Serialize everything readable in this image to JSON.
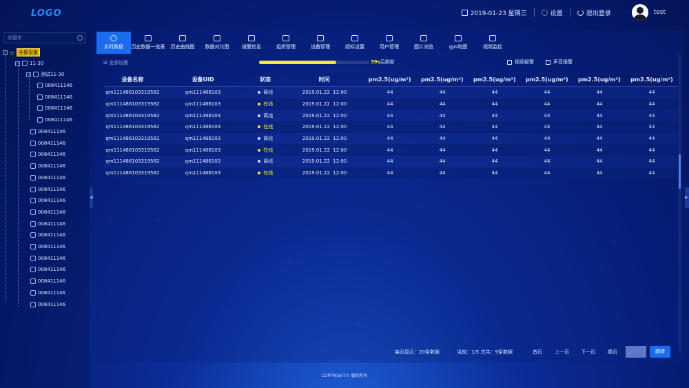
{
  "header": {
    "logo": "LOGO",
    "date": "2019-01-23 星期三",
    "settings": "设置",
    "logout": "退出登录",
    "username": "test"
  },
  "sidebar": {
    "search_placeholder": "关键字",
    "root": "全部设备",
    "group1": "11-30",
    "subgroup": "测试11-30",
    "sub_devices": [
      "008411146",
      "008411146",
      "008411146",
      "008411146"
    ],
    "devices": [
      "008411146",
      "008411146",
      "008411146",
      "008411146",
      "008411146",
      "008411146",
      "008411146",
      "008411146",
      "008411146",
      "008411146",
      "008411146",
      "008411146",
      "008411146",
      "008411146",
      "008411146",
      "008411146"
    ]
  },
  "nav": {
    "tabs": [
      "实时数据",
      "历史数据一览表",
      "历史曲线图",
      "数据对比图",
      "报警信息",
      "组织管理",
      "设备管理",
      "超标设置",
      "用户管理",
      "图片浏览",
      "gps地图",
      "视频监控"
    ]
  },
  "subbar": {
    "all_devices": "全部设备",
    "progress": 0.7,
    "refresh_seconds": "39s",
    "refresh_suffix": "后刷新",
    "video_alarm": "视频报警",
    "sound_alarm": "声音报警"
  },
  "table": {
    "headers": [
      "设备名称",
      "设备UID",
      "状态",
      "时间",
      "pm2.5(ug/m³)",
      "pm2.5(ug/m³)",
      "pm2.5(ug/m³)",
      "pm2.5(ug/m³)",
      "pm2.5(ug/m³)",
      "pm2.5(ug/m³)"
    ],
    "rows": [
      {
        "name": "qm111486103319582",
        "uid": "qm111486103",
        "status": "离线",
        "online": false,
        "time": "2019.01.22  12:00",
        "values": [
          "44",
          "44",
          "44",
          "44",
          "44",
          "44"
        ]
      },
      {
        "name": "qm111486103319582",
        "uid": "qm111486103",
        "status": "在线",
        "online": true,
        "time": "2019.01.22  12:00",
        "values": [
          "44",
          "44",
          "44",
          "44",
          "44",
          "44"
        ]
      },
      {
        "name": "qm111486103319582",
        "uid": "qm111486103",
        "status": "离线",
        "online": false,
        "time": "2019.01.22  12:00",
        "values": [
          "44",
          "44",
          "44",
          "44",
          "44",
          "44"
        ]
      },
      {
        "name": "qm111486103319582",
        "uid": "qm111486103",
        "status": "在线",
        "online": true,
        "time": "2019.01.22  12:00",
        "values": [
          "44",
          "44",
          "44",
          "44",
          "44",
          "44"
        ]
      },
      {
        "name": "qm111486103319582",
        "uid": "qm111486103",
        "status": "离线",
        "online": false,
        "time": "2019.01.22  12:00",
        "values": [
          "44",
          "44",
          "44",
          "44",
          "44",
          "44"
        ]
      },
      {
        "name": "qm111486103319582",
        "uid": "qm111486103",
        "status": "在线",
        "online": true,
        "time": "2019.01.22  12:00",
        "values": [
          "44",
          "44",
          "44",
          "44",
          "44",
          "44"
        ]
      },
      {
        "name": "qm111486103319582",
        "uid": "qm111486103",
        "status": "离线",
        "online": false,
        "time": "2019.01.22  12:00",
        "values": [
          "44",
          "44",
          "44",
          "44",
          "44",
          "44"
        ]
      },
      {
        "name": "qm111486103319582",
        "uid": "qm111486103",
        "status": "在线",
        "online": true,
        "time": "2019.01.22  12:00",
        "values": [
          "44",
          "44",
          "44",
          "44",
          "44",
          "44"
        ]
      }
    ]
  },
  "pager": {
    "per_page": "每页显示：20条数据",
    "current": "当前：1/5  总共：9条数据",
    "first": "首页",
    "prev": "上一页",
    "next": "下一页",
    "last": "尾页",
    "go": "跳转"
  },
  "footer": "COPYRIGHT© 版权所有",
  "colors": {
    "accent": "#1c6cf0",
    "online": "#f5e93a",
    "root_highlight": "#e2b800"
  }
}
